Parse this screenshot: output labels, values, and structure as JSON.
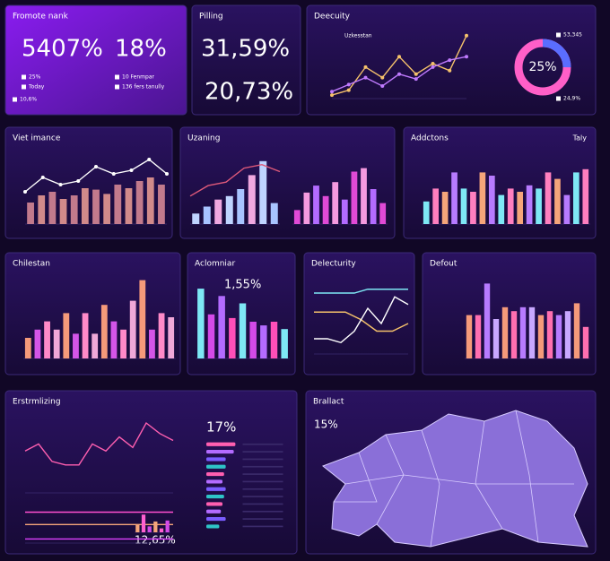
{
  "panels": [
    {
      "title": "Fromote nank",
      "stats": [
        "5407%",
        "18%"
      ],
      "items": [
        "25%",
        "Today",
        "10,6%",
        "10 Fenmpar",
        "136 fers tanully"
      ]
    },
    {
      "title": "Pilling",
      "stats": [
        "31,59%",
        "20,73%"
      ]
    },
    {
      "title": "Deecuity",
      "legend": "Uzkesstan",
      "items": [
        "53,345",
        "24,9%"
      ],
      "donut": {
        "value": 25,
        "value_label": "25%",
        "colors": [
          "#ff5fc8",
          "#5a6dff"
        ]
      },
      "charts": [
        {
          "ylim": [
            0,
            100
          ],
          "lines": [
            {
              "color": "#f5c26b",
              "values": [
                5,
                12,
                45,
                30,
                60,
                35,
                50,
                40,
                90
              ]
            },
            {
              "color": "#c07bff",
              "values": [
                10,
                20,
                30,
                18,
                35,
                28,
                45,
                55,
                60
              ]
            }
          ]
        }
      ]
    },
    {
      "title": "Viet imance",
      "charts": [
        {
          "ylim": [
            0,
            100
          ],
          "bars": {
            "colors": [
              "#c27a8c",
              "#d18a8a"
            ],
            "values": [
              30,
              40,
              45,
              35,
              40,
              50,
              48,
              42,
              55,
              50,
              60,
              65,
              55
            ]
          },
          "lines": [
            {
              "color": "#ffffff",
              "values": [
                45,
                65,
                55,
                60,
                80,
                70,
                75,
                90,
                70
              ]
            }
          ]
        }
      ]
    },
    {
      "title": "Uzaning",
      "charts": [
        {
          "ylim": [
            0,
            100
          ],
          "bars": {
            "colors": [
              "#bfd4ff",
              "#a8c4ff",
              "#f0a8e0"
            ],
            "values": [
              15,
              25,
              35,
              40,
              50,
              70,
              90,
              30
            ]
          },
          "lines": [
            {
              "color": "#e05a7a",
              "values": [
                40,
                55,
                60,
                80,
                85,
                75
              ]
            }
          ]
        },
        {
          "ylim": [
            0,
            100
          ],
          "bars": {
            "colors": [
              "#e04ad6",
              "#f59ae0",
              "#b36bff"
            ],
            "values": [
              20,
              45,
              55,
              40,
              60,
              35,
              75,
              80,
              50,
              30
            ]
          }
        }
      ]
    },
    {
      "title": "Addctons",
      "subtitle": "Taly",
      "charts": [
        {
          "ylim": [
            0,
            100
          ],
          "bars": {
            "colors": [
              "#7ee8f5",
              "#ff7fbf",
              "#f5a57a",
              "#b77bff"
            ],
            "values": [
              35,
              55,
              50,
              80,
              55,
              50,
              80,
              75,
              45,
              55,
              50,
              60,
              55,
              80,
              70,
              45,
              80,
              85
            ]
          }
        }
      ]
    },
    {
      "title": "Chilestan",
      "charts": [
        {
          "ylim": [
            0,
            100
          ],
          "bars": {
            "colors": [
              "#f59a7a",
              "#d455e8",
              "#ff8ac8",
              "#f0a8d8"
            ],
            "values": [
              25,
              35,
              45,
              35,
              55,
              30,
              55,
              30,
              65,
              45,
              35,
              70,
              95,
              35,
              55,
              50
            ]
          }
        }
      ]
    },
    {
      "title": "Aclomniar",
      "stats": [
        "1,55%"
      ],
      "charts": [
        {
          "ylim": [
            0,
            100
          ],
          "bars": {
            "colors": [
              "#7ee8f5",
              "#d44ae8",
              "#b36bff",
              "#ff4fb8"
            ],
            "values": [
              95,
              60,
              85,
              55,
              75,
              50,
              45,
              50,
              40
            ]
          }
        }
      ]
    },
    {
      "title": "Delecturity",
      "charts": [
        {
          "ylim": [
            0,
            100
          ],
          "lines": [
            {
              "color": "#7ee8f5",
              "values": [
                80,
                80,
                80,
                80,
                85,
                85,
                85,
                85
              ]
            },
            {
              "color": "#f5c26b",
              "values": [
                55,
                55,
                55,
                45,
                30,
                30,
                40
              ]
            },
            {
              "color": "#ffffff",
              "values": [
                20,
                20,
                15,
                30,
                60,
                40,
                75,
                65
              ]
            }
          ]
        }
      ]
    },
    {
      "title": "Defout",
      "charts": [
        {
          "ylim": [
            0,
            100
          ],
          "bars": {
            "colors": [
              "#f59a7a",
              "#ff6fb0",
              "#b77bff",
              "#c8a8ff"
            ],
            "values": [
              55,
              55,
              95,
              50,
              65,
              60,
              65,
              65,
              55,
              60,
              55,
              60,
              70,
              40
            ]
          }
        }
      ]
    },
    {
      "title": "Erstrmlizing",
      "stats": [
        "17%",
        "12,65%"
      ],
      "charts": [
        {
          "ylim": [
            0,
            100
          ],
          "lines": [
            {
              "color": "#ff5fb0",
              "values": [
                60,
                70,
                45,
                40,
                40,
                70,
                60,
                80,
                65,
                100,
                85,
                75
              ]
            }
          ]
        },
        {
          "ylim": [
            0,
            100
          ],
          "lines": [
            {
              "color": "#ff4fd0",
              "values": [
                75,
                75,
                75,
                75,
                75
              ]
            },
            {
              "color": "#f5a57a",
              "values": [
                45,
                45,
                45,
                45,
                45,
                45
              ]
            },
            {
              "color": "#e040ff",
              "values": [
                10,
                10,
                10,
                10,
                10,
                10,
                10
              ]
            }
          ]
        },
        {
          "ylim": [
            0,
            100
          ],
          "horizontal": true,
          "bars": {
            "colors": [
              "#ff5fb0",
              "#b36bff",
              "#7a5cff",
              "#2ec4c8"
            ],
            "values": [
              90,
              85,
              60,
              60,
              55,
              50,
              60,
              55,
              50,
              45,
              60,
              40
            ]
          }
        },
        {
          "ylim": [
            0,
            100
          ],
          "bars": {
            "colors": [
              "#f5a57a",
              "#ff5fd0",
              "#d44ae8"
            ],
            "values": [
              40,
              90,
              30,
              55,
              20,
              60
            ]
          }
        }
      ]
    },
    {
      "title": "Brallact",
      "stats": [
        "15%"
      ]
    }
  ]
}
